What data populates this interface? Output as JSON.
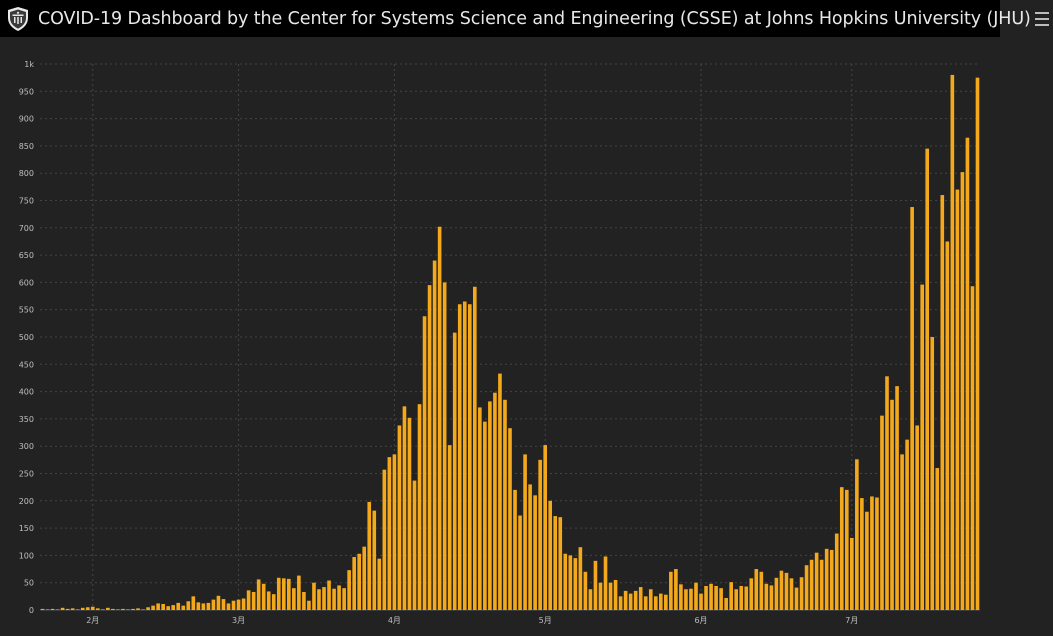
{
  "header": {
    "title": "COVID-19 Dashboard by the Center for Systems Science and Engineering (CSSE) at Johns Hopkins University (JHU)",
    "logo_icon": "jhu-shield-icon",
    "menu_icon": "hamburger-menu-icon"
  },
  "colors": {
    "bar": "#f3a91b",
    "background": "#222222",
    "header": "#000000",
    "text": "#bfbfbf",
    "grid": "#444444"
  },
  "chart_data": {
    "type": "bar",
    "title": "",
    "xlabel": "",
    "ylabel": "",
    "ylim": [
      0,
      1000
    ],
    "grid": true,
    "yticks": [
      0,
      50,
      100,
      150,
      200,
      250,
      300,
      350,
      400,
      450,
      500,
      550,
      600,
      650,
      700,
      750,
      800,
      850,
      900,
      950,
      1000
    ],
    "ytick_labels": [
      "0",
      "50",
      "100",
      "150",
      "200",
      "250",
      "300",
      "350",
      "400",
      "450",
      "500",
      "550",
      "600",
      "650",
      "700",
      "750",
      "800",
      "850",
      "900",
      "950",
      "1k"
    ],
    "x_start": "2020-01-22",
    "x_ticks": [
      {
        "date": "2020-02-01",
        "label": "2月"
      },
      {
        "date": "2020-03-01",
        "label": "3月"
      },
      {
        "date": "2020-04-01",
        "label": "4月"
      },
      {
        "date": "2020-05-01",
        "label": "5月"
      },
      {
        "date": "2020-06-01",
        "label": "6月"
      },
      {
        "date": "2020-07-01",
        "label": "7月"
      }
    ],
    "values": [
      2,
      1,
      2,
      1,
      4,
      2,
      3,
      1,
      4,
      5,
      6,
      3,
      1,
      4,
      2,
      1,
      2,
      1,
      2,
      3,
      1,
      5,
      8,
      12,
      11,
      7,
      9,
      13,
      8,
      16,
      25,
      14,
      12,
      13,
      19,
      26,
      20,
      12,
      17,
      19,
      21,
      36,
      33,
      56,
      48,
      34,
      29,
      59,
      58,
      57,
      40,
      63,
      33,
      17,
      50,
      38,
      42,
      54,
      39,
      45,
      40,
      73,
      97,
      103,
      116,
      198,
      182,
      94,
      257,
      280,
      285,
      338,
      373,
      352,
      237,
      377,
      538,
      595,
      640,
      702,
      600,
      302,
      508,
      560,
      565,
      560,
      592,
      371,
      345,
      382,
      398,
      433,
      385,
      333,
      220,
      173,
      285,
      230,
      210,
      275,
      302,
      200,
      172,
      170,
      103,
      100,
      95,
      115,
      70,
      38,
      90,
      50,
      98,
      50,
      55,
      25,
      35,
      30,
      35,
      42,
      25,
      38,
      25,
      30,
      28,
      70,
      75,
      47,
      38,
      39,
      50,
      30,
      44,
      48,
      44,
      40,
      22,
      51,
      38,
      44,
      43,
      58,
      75,
      70,
      48,
      45,
      59,
      72,
      68,
      58,
      41,
      60,
      82,
      92,
      105,
      92,
      112,
      110,
      140,
      225,
      220,
      132,
      276,
      205,
      180,
      208,
      206,
      356,
      428,
      385,
      410,
      285,
      312,
      738,
      338,
      596,
      845,
      500,
      260,
      760,
      675,
      980,
      770,
      802,
      865,
      593,
      975
    ]
  }
}
